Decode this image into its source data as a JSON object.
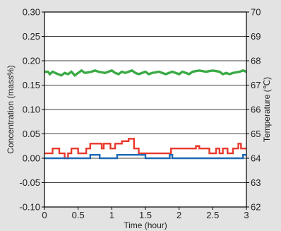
{
  "chart_data": {
    "type": "line",
    "xlabel": "Time (hour)",
    "ylabel_left": "Concentration (mass%)",
    "ylabel_right": "Temperature (℃)",
    "xlim": [
      0,
      3
    ],
    "ylim_left": [
      -0.1,
      0.3
    ],
    "ylim_right": [
      62,
      70
    ],
    "x_ticks": [
      "0",
      "0.5",
      "1",
      "1.5",
      "2",
      "2.5",
      "3"
    ],
    "y_left_ticks": [
      "0.30",
      "0.25",
      "0.20",
      "0.15",
      "0.10",
      "0.05",
      "0.00",
      "-0.05",
      "-0.10"
    ],
    "y_right_ticks": [
      "70",
      "69",
      "68",
      "67",
      "66",
      "65",
      "64",
      "63",
      "62"
    ],
    "grid": "horizontal",
    "series": [
      {
        "axis": "right",
        "color": "#3aaa45",
        "x": [
          0,
          0.05,
          0.08,
          0.12,
          0.2,
          0.25,
          0.3,
          0.35,
          0.4,
          0.45,
          0.5,
          0.55,
          0.6,
          0.7,
          0.75,
          0.8,
          0.9,
          1.0,
          1.05,
          1.1,
          1.15,
          1.2,
          1.25,
          1.3,
          1.35,
          1.4,
          1.45,
          1.5,
          1.55,
          1.6,
          1.7,
          1.75,
          1.8,
          1.85,
          1.9,
          1.95,
          2.0,
          2.05,
          2.1,
          2.15,
          2.2,
          2.3,
          2.4,
          2.5,
          2.6,
          2.65,
          2.7,
          2.75,
          2.8,
          2.9,
          2.95,
          3.0
        ],
        "y": [
          67.55,
          67.55,
          67.45,
          67.55,
          67.45,
          67.4,
          67.5,
          67.45,
          67.55,
          67.4,
          67.5,
          67.6,
          67.5,
          67.55,
          67.6,
          67.55,
          67.5,
          67.6,
          67.5,
          67.45,
          67.55,
          67.5,
          67.55,
          67.6,
          67.5,
          67.45,
          67.5,
          67.55,
          67.45,
          67.5,
          67.55,
          67.5,
          67.45,
          67.5,
          67.55,
          67.5,
          67.45,
          67.55,
          67.5,
          67.45,
          67.55,
          67.6,
          67.55,
          67.6,
          67.55,
          67.45,
          67.5,
          67.45,
          67.5,
          67.55,
          67.6,
          67.55
        ]
      },
      {
        "axis": "left",
        "color": "#e8382d",
        "x": [
          0,
          0.12,
          0.12,
          0.22,
          0.22,
          0.3,
          0.3,
          0.35,
          0.35,
          0.4,
          0.4,
          0.5,
          0.5,
          0.62,
          0.62,
          0.68,
          0.68,
          0.85,
          0.85,
          0.88,
          0.88,
          0.98,
          0.98,
          1.05,
          1.05,
          1.15,
          1.15,
          1.25,
          1.25,
          1.33,
          1.33,
          1.4,
          1.4,
          1.88,
          1.88,
          1.95,
          1.95,
          2.25,
          2.25,
          2.3,
          2.3,
          2.45,
          2.45,
          2.55,
          2.55,
          2.6,
          2.6,
          2.65,
          2.65,
          2.72,
          2.72,
          2.8,
          2.8,
          2.88,
          2.88,
          2.92,
          2.92,
          3.0
        ],
        "y": [
          0.01,
          0.01,
          0.02,
          0.02,
          0.01,
          0.01,
          0.0,
          0.0,
          0.01,
          0.01,
          0.02,
          0.02,
          0.01,
          0.01,
          0.02,
          0.02,
          0.03,
          0.03,
          0.02,
          0.02,
          0.03,
          0.03,
          0.02,
          0.02,
          0.03,
          0.03,
          0.035,
          0.035,
          0.04,
          0.04,
          0.02,
          0.02,
          0.01,
          0.01,
          0.02,
          0.02,
          0.02,
          0.02,
          0.025,
          0.025,
          0.02,
          0.02,
          0.01,
          0.01,
          0.02,
          0.02,
          0.01,
          0.01,
          0.02,
          0.02,
          0.01,
          0.01,
          0.02,
          0.02,
          0.03,
          0.03,
          0.02,
          0.02
        ]
      },
      {
        "axis": "left",
        "color": "#1f69b4",
        "x": [
          0,
          0.68,
          0.68,
          0.82,
          0.82,
          1.08,
          1.08,
          1.5,
          1.5,
          1.86,
          1.86,
          1.9,
          1.9,
          2.95,
          2.95,
          3.0
        ],
        "y": [
          0.0,
          0.0,
          0.007,
          0.007,
          0.0,
          0.0,
          0.007,
          0.007,
          0.0,
          0.0,
          0.007,
          0.007,
          0.0,
          0.0,
          0.007,
          0.007
        ]
      }
    ]
  }
}
